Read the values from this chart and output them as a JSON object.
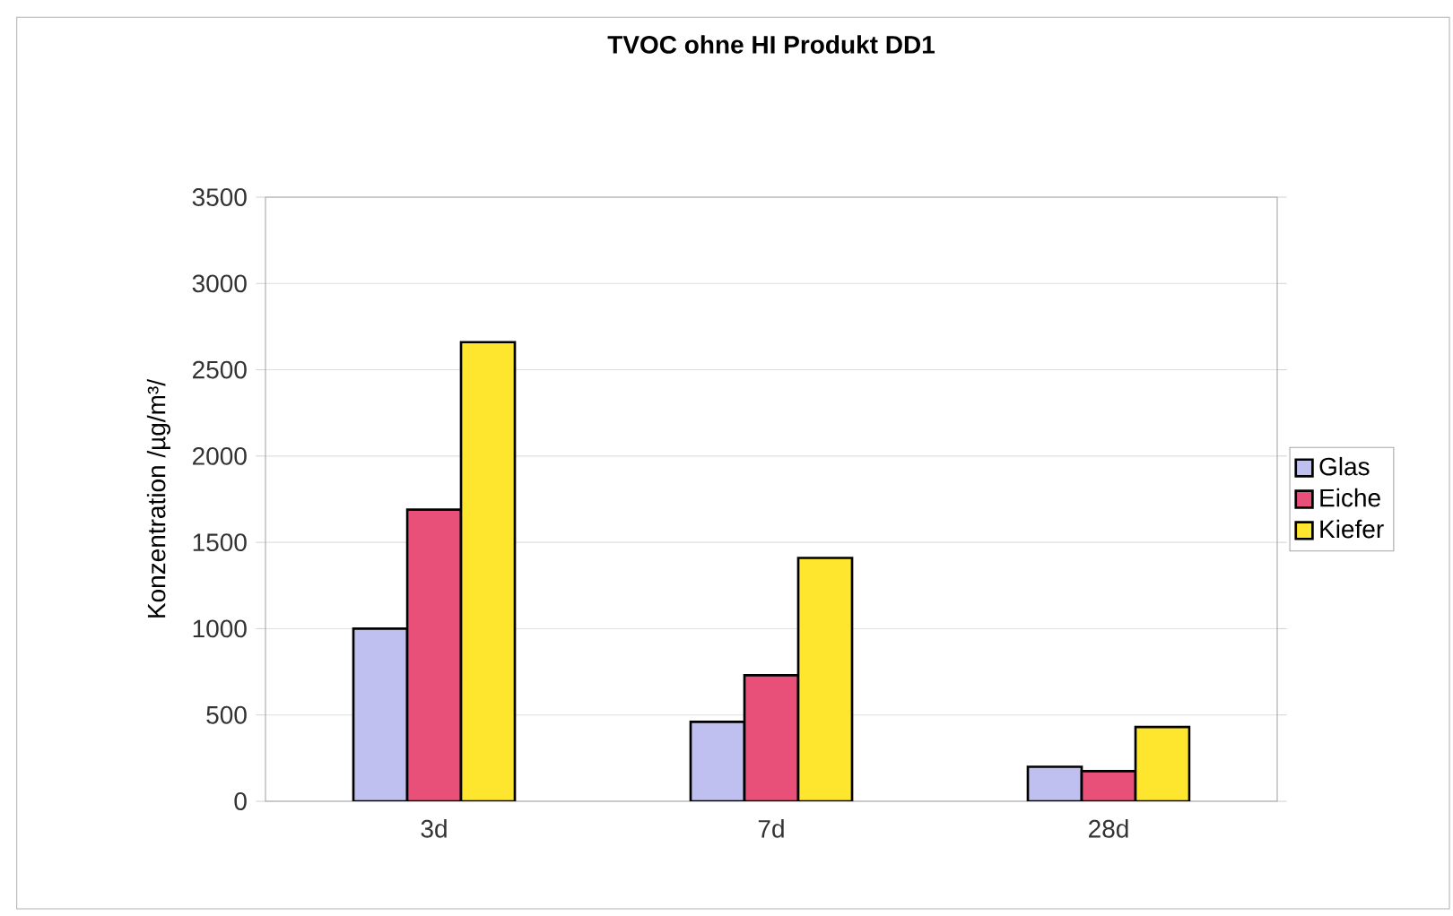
{
  "chart_data": {
    "type": "bar",
    "title": "TVOC ohne HI  Produkt DD1",
    "ylabel": "Konzentration /µg/m³/",
    "categories": [
      "3d",
      "7d",
      "28d"
    ],
    "series": [
      {
        "name": "Glas",
        "color": "#c0c0f0",
        "values": [
          1000,
          460,
          200
        ]
      },
      {
        "name": "Eiche",
        "color": "#e8507a",
        "values": [
          1690,
          730,
          175
        ]
      },
      {
        "name": "Kiefer",
        "color": "#ffe62e",
        "values": [
          2660,
          1410,
          430
        ]
      }
    ],
    "ylim": [
      0,
      3500
    ],
    "yticks": [
      0,
      500,
      1000,
      1500,
      2000,
      2500,
      3000,
      3500
    ],
    "grid": "y",
    "legend": "right"
  }
}
